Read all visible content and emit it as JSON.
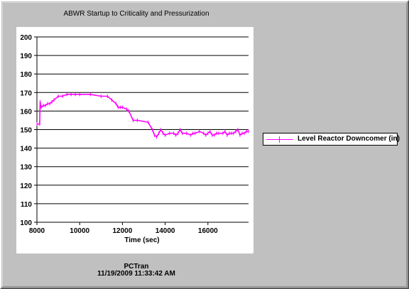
{
  "chart_data": {
    "type": "line",
    "title": "ABWR Startup to Criticality and Pressurization",
    "xlabel": "Time (sec)",
    "ylabel": "",
    "xlim": [
      8000,
      17900
    ],
    "ylim": [
      100,
      200
    ],
    "xticks": [
      8000,
      10000,
      12000,
      14000,
      16000
    ],
    "xtick_labels": [
      "8000",
      "10000",
      "12000",
      "14000",
      "16000"
    ],
    "yticks": [
      100,
      110,
      120,
      130,
      140,
      150,
      160,
      170,
      180,
      190,
      200
    ],
    "ytick_labels": [
      "100",
      "110",
      "120",
      "130",
      "140",
      "150",
      "160",
      "170",
      "180",
      "190",
      "200"
    ],
    "grid": "horizontal",
    "legend_position": "right",
    "series": [
      {
        "name": "Level Reactor Downcomer (in)",
        "color": "#ff00ff",
        "x": [
          8000,
          8130,
          8150,
          8200,
          8300,
          8400,
          8500,
          8600,
          8700,
          8800,
          9000,
          9200,
          9400,
          9600,
          9800,
          10000,
          10500,
          11000,
          11300,
          11500,
          11700,
          11800,
          11900,
          12000,
          12200,
          12300,
          12500,
          12700,
          13200,
          13400,
          13500,
          13600,
          13700,
          13800,
          13900,
          14000,
          14200,
          14400,
          14500,
          14600,
          14700,
          14800,
          15000,
          15200,
          15300,
          15400,
          15600,
          15800,
          15900,
          16000,
          16100,
          16200,
          16300,
          16400,
          16500,
          16700,
          16800,
          16900,
          17000,
          17100,
          17200,
          17300,
          17400,
          17500,
          17600,
          17700,
          17800,
          17900
        ],
        "y": [
          153,
          153,
          165,
          162,
          163,
          163,
          164,
          164,
          165,
          166,
          168,
          168,
          169,
          169,
          169,
          169,
          169,
          168,
          168,
          166,
          164,
          162,
          162,
          162,
          161,
          160,
          155,
          155,
          154,
          150,
          147,
          146,
          148,
          150,
          148,
          147,
          148,
          148,
          147,
          148,
          150,
          148,
          148,
          147,
          148,
          148,
          149,
          148,
          147,
          148,
          149,
          147,
          147,
          148,
          148,
          148,
          149,
          147,
          148,
          148,
          148,
          149,
          150,
          147,
          148,
          148,
          149,
          149
        ]
      }
    ]
  },
  "footer": {
    "app": "PCTran",
    "timestamp": "11/19/2009 11:33:42 AM"
  }
}
